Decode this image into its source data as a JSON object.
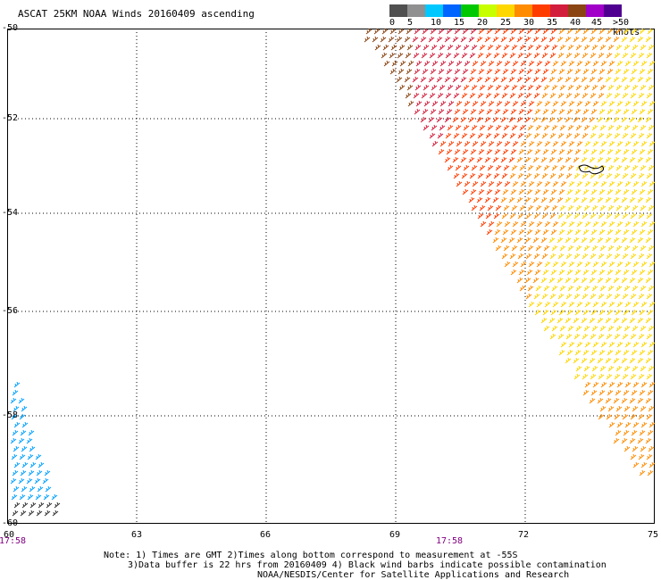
{
  "title": "ASCAT 25KM NOAA Winds 20160409 ascending",
  "scale": {
    "colors": [
      "#505050",
      "#909090",
      "#00c8ff",
      "#0064ff",
      "#00c800",
      "#c8ff00",
      "#ffd700",
      "#ff8c00",
      "#ff3c00",
      "#d21e3c",
      "#8b4513",
      "#a000c8",
      "#500090"
    ],
    "labels": [
      "0",
      "5",
      "10",
      "15",
      "20",
      "25",
      "30",
      "35",
      "40",
      "45"
    ],
    "unit_label": ">50 knots"
  },
  "axes": {
    "y_labels": [
      "-50",
      "-52",
      "-54",
      "-56",
      "-58",
      "-60"
    ],
    "x_labels": [
      "60",
      "63",
      "66",
      "69",
      "72",
      "75"
    ]
  },
  "times": {
    "left": "17:58",
    "center": "17:58"
  },
  "notes": {
    "line1": "Note: 1) Times are GMT 2)Times along bottom correspond to measurement at -55S",
    "line2": "3)Data buffer is 22 hrs from 20160409 4) Black wind barbs indicate possible contamination",
    "line3": "NOAA/NESDIS/Center for Satellite Applications and Research"
  }
}
